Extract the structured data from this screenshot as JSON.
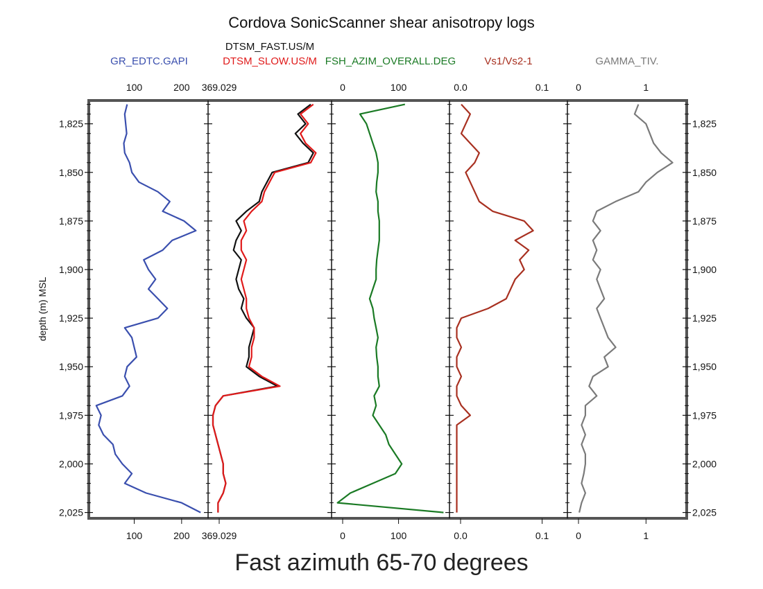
{
  "title": "Cordova SonicScanner shear anisotropy logs",
  "caption": "Fast azimuth 65-70 degrees",
  "colors": {
    "gr": "#3a4fae",
    "fast": "#111111",
    "slow": "#e01a1a",
    "azim": "#1a7a24",
    "vs": "#a83020",
    "gamma": "#7a7a7a"
  },
  "chart_data": {
    "type": "line",
    "title": "Cordova SonicScanner shear anisotropy logs",
    "ylabel": "depth (m) MSL",
    "ylim": [
      1813,
      2028
    ],
    "y_ticks": [
      "1,825",
      "1,850",
      "1,875",
      "1,900",
      "1,925",
      "1,950",
      "1,975",
      "2,000",
      "2,025"
    ],
    "y_tick_values": [
      1825,
      1850,
      1875,
      1900,
      1925,
      1950,
      1975,
      2000,
      2025
    ],
    "depth": [
      1815,
      1820,
      1825,
      1830,
      1835,
      1840,
      1845,
      1850,
      1855,
      1860,
      1865,
      1870,
      1875,
      1880,
      1885,
      1890,
      1895,
      1900,
      1905,
      1910,
      1915,
      1920,
      1925,
      1930,
      1935,
      1940,
      1945,
      1950,
      1955,
      1960,
      1965,
      1970,
      1975,
      1980,
      1985,
      1990,
      1995,
      2000,
      2005,
      2010,
      2015,
      2020,
      2025
    ],
    "tracks": [
      {
        "scale_labels": [
          "100",
          "200"
        ],
        "scale_values": [
          100,
          200
        ],
        "xlim": [
          10,
          250
        ],
        "series": [
          {
            "name": "GR_EDTC.GAPI",
            "color_key": "gr",
            "values": [
              85,
              80,
              82,
              84,
              78,
              80,
              90,
              95,
              110,
              150,
              175,
              160,
              205,
              230,
              180,
              160,
              120,
              130,
              145,
              130,
              150,
              170,
              150,
              80,
              95,
              100,
              105,
              85,
              80,
              90,
              75,
              20,
              30,
              25,
              35,
              55,
              60,
              75,
              95,
              80,
              125,
              200,
              240
            ]
          }
        ]
      },
      {
        "scale_labels": [
          "369.029"
        ],
        "scale_values": [
          369.029
        ],
        "xlim": [
          369.029,
          140
        ],
        "series": [
          {
            "name": "DTSM_FAST.US/M",
            "color_key": "fast",
            "values": [
              175,
              200,
              185,
              205,
              190,
              170,
              180,
              250,
              260,
              270,
              275,
              300,
              320,
              310,
              320,
              325,
              310,
              315,
              320,
              315,
              305,
              310,
              300,
              285,
              290,
              295,
              295,
              300,
              275,
              240,
              345,
              360,
              365,
              365,
              360,
              355,
              350,
              345,
              345,
              340,
              345,
              355,
              355
            ]
          },
          {
            "name": "DTSM_SLOW.US/M",
            "color_key": "slow",
            "values": [
              170,
              195,
              180,
              195,
              185,
              165,
              175,
              245,
              255,
              265,
              270,
              290,
              305,
              300,
              310,
              310,
              300,
              305,
              310,
              305,
              300,
              300,
              295,
              285,
              285,
              290,
              290,
              295,
              270,
              235,
              345,
              360,
              365,
              365,
              360,
              355,
              350,
              345,
              345,
              340,
              345,
              355,
              355
            ]
          }
        ]
      },
      {
        "scale_labels": [
          "0",
          "100"
        ],
        "scale_values": [
          0,
          100
        ],
        "xlim": [
          0,
          175
        ],
        "series": [
          {
            "name": "FSH_AZIM_OVERALL.DEG",
            "color_key": "azim",
            "values": [
              110,
              40,
              50,
              55,
              60,
              65,
              68,
              68,
              66,
              65,
              68,
              68,
              70,
              70,
              70,
              68,
              66,
              65,
              65,
              60,
              55,
              60,
              62,
              65,
              68,
              65,
              66,
              68,
              68,
              70,
              62,
              65,
              60,
              70,
              80,
              85,
              95,
              105,
              95,
              60,
              25,
              5,
              170
            ]
          }
        ]
      },
      {
        "scale_labels": [
          "0.0",
          "0.1"
        ],
        "scale_values": [
          0,
          0.1
        ],
        "xlim": [
          0,
          0.125
        ],
        "series": [
          {
            "name": "Vs1/Vs2-1",
            "color_key": "vs",
            "values": [
              0.01,
              0.02,
              0.015,
              0.01,
              0.02,
              0.03,
              0.025,
              0.015,
              0.02,
              0.025,
              0.03,
              0.045,
              0.08,
              0.09,
              0.07,
              0.085,
              0.075,
              0.08,
              0.07,
              0.065,
              0.06,
              0.04,
              0.01,
              0.005,
              0.005,
              0.01,
              0.005,
              0.005,
              0.01,
              0.005,
              0.005,
              0.01,
              0.02,
              0.005,
              0.005,
              0.005,
              0.005,
              0.005,
              0.005,
              0.005,
              0.005,
              0.005,
              0.005
            ]
          }
        ]
      },
      {
        "scale_labels": [
          "0",
          "1"
        ],
        "scale_values": [
          0,
          1
        ],
        "xlim": [
          0,
          1.5
        ],
        "series": [
          {
            "name": "GAMMA_TIV.",
            "color_key": "gamma",
            "values": [
              0.9,
              0.85,
              1.0,
              1.05,
              1.1,
              1.2,
              1.35,
              1.15,
              1.0,
              0.9,
              0.6,
              0.35,
              0.3,
              0.4,
              0.3,
              0.35,
              0.3,
              0.4,
              0.35,
              0.4,
              0.45,
              0.35,
              0.4,
              0.45,
              0.5,
              0.6,
              0.45,
              0.5,
              0.3,
              0.25,
              0.35,
              0.2,
              0.2,
              0.15,
              0.2,
              0.15,
              0.2,
              0.2,
              0.18,
              0.15,
              0.2,
              0.15,
              0.12
            ]
          }
        ]
      }
    ]
  }
}
